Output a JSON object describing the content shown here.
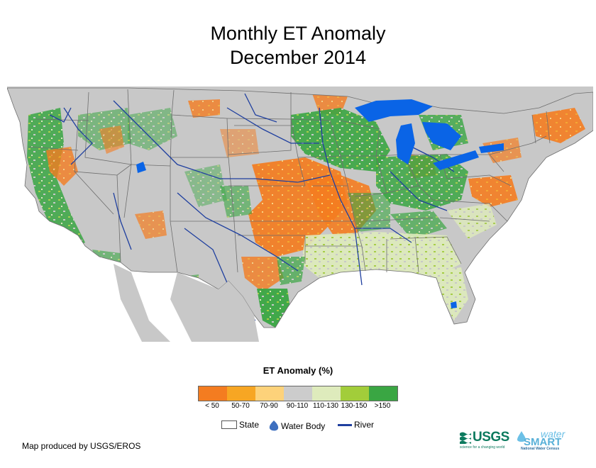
{
  "title": {
    "line1": "Monthly ET Anomaly",
    "line2": "December 2014"
  },
  "legend": {
    "title": "ET Anomaly (%)",
    "classes": [
      {
        "label": "< 50",
        "color": "#f47c20"
      },
      {
        "label": "50-70",
        "color": "#f7a623"
      },
      {
        "label": "70-90",
        "color": "#fdd27a"
      },
      {
        "label": "90-110",
        "color": "#cccccc"
      },
      {
        "label": "110-130",
        "color": "#deebbc"
      },
      {
        "label": "130-150",
        "color": "#a2cd3a"
      },
      {
        "label": ">150",
        "color": "#3aa643"
      }
    ],
    "symbols": {
      "state": "State",
      "water_body": "Water Body",
      "river": "River"
    }
  },
  "credit": "Map produced by USGS/EROS",
  "logos": {
    "usgs": "USGS",
    "usgs_tagline": "science for a changing world",
    "watersmart_water": "water",
    "watersmart_smart": "SMART",
    "watersmart_tagline": "National Water Census"
  },
  "colors": {
    "land": "#c8c8c8",
    "water": "#0a64e6",
    "river": "#1f3f9f",
    "border": "#6e6e6e"
  }
}
